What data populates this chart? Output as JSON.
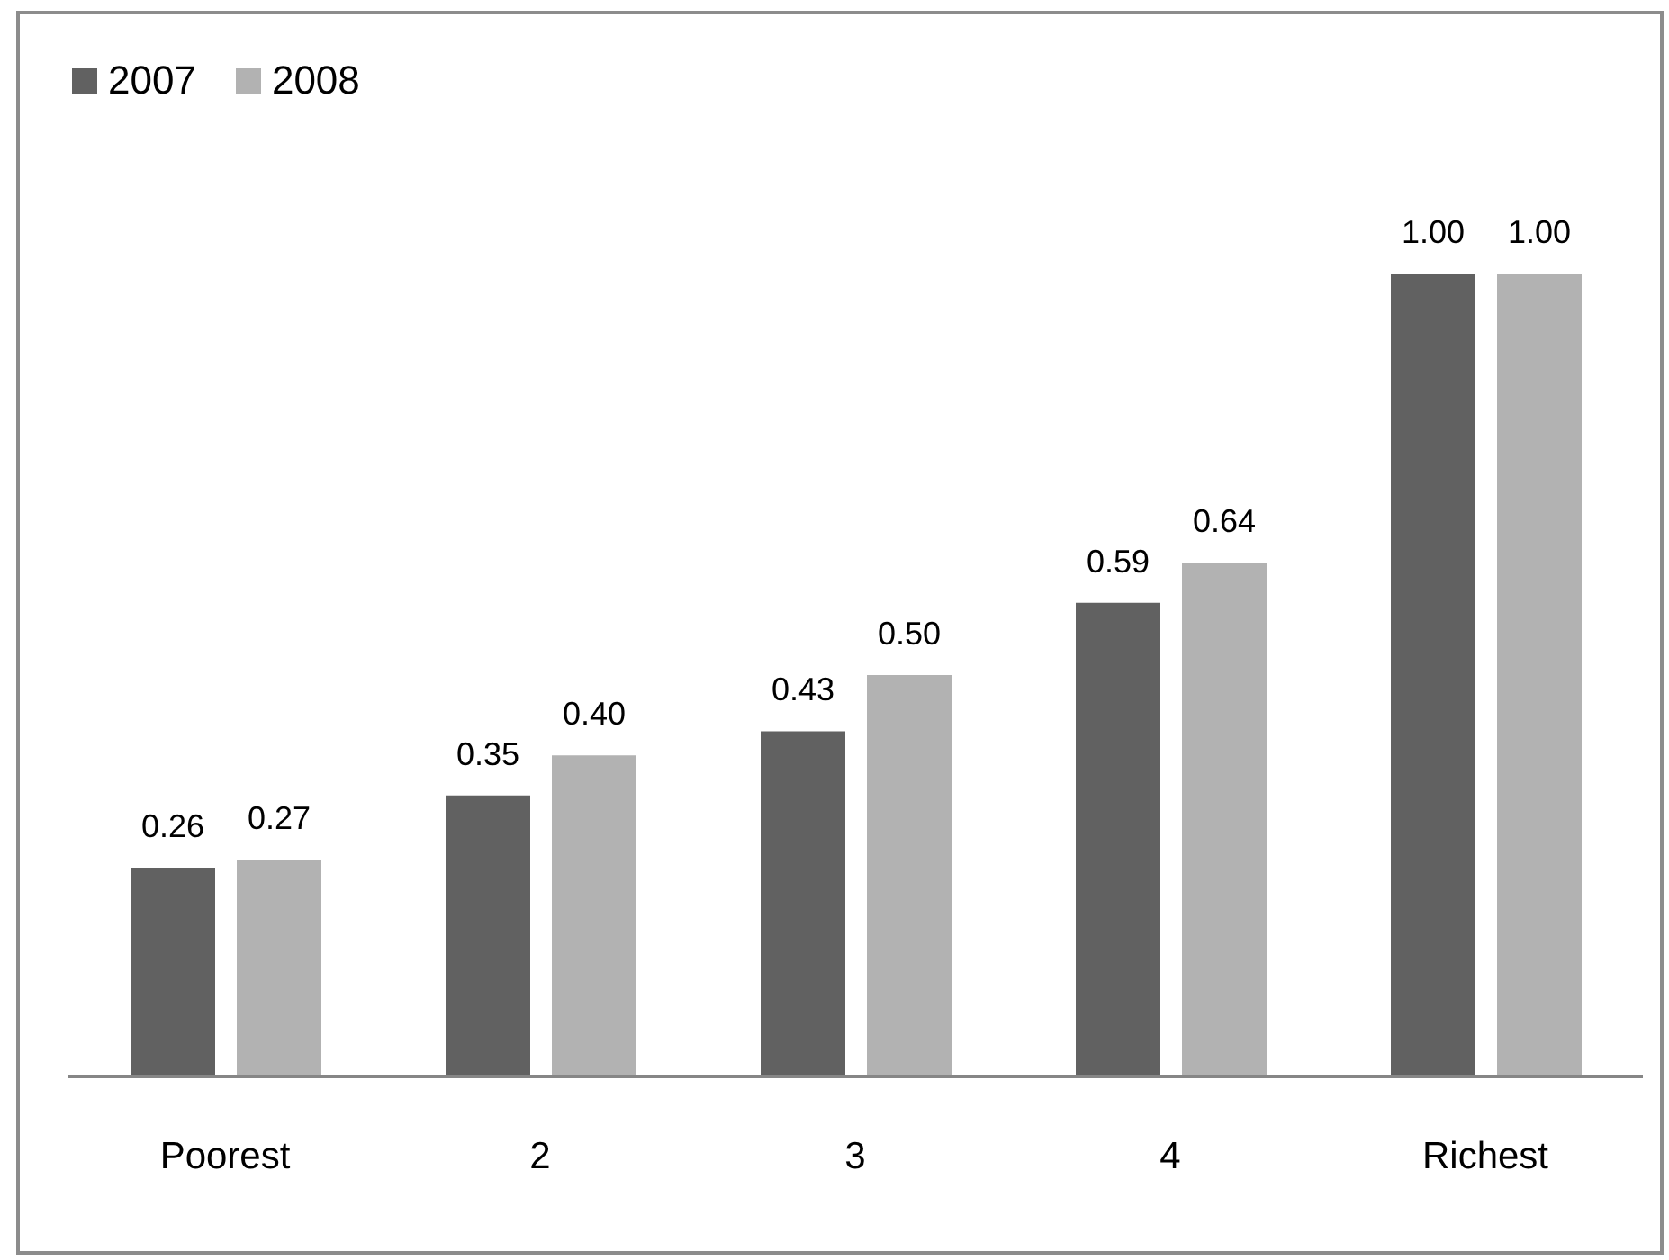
{
  "chart_data": {
    "type": "bar",
    "categories": [
      "Poorest",
      "2",
      "3",
      "4",
      "Richest"
    ],
    "series": [
      {
        "name": "2007",
        "color": "#616161",
        "values": [
          0.26,
          0.35,
          0.43,
          0.59,
          1.0
        ],
        "value_labels": [
          "0.26",
          "0.35",
          "0.43",
          "0.59",
          "1.00"
        ]
      },
      {
        "name": "2008",
        "color": "#b2b2b2",
        "values": [
          0.27,
          0.4,
          0.5,
          0.64,
          1.0
        ],
        "value_labels": [
          "0.27",
          "0.40",
          "0.50",
          "0.64",
          "1.00"
        ]
      }
    ],
    "legend": "top left"
  }
}
